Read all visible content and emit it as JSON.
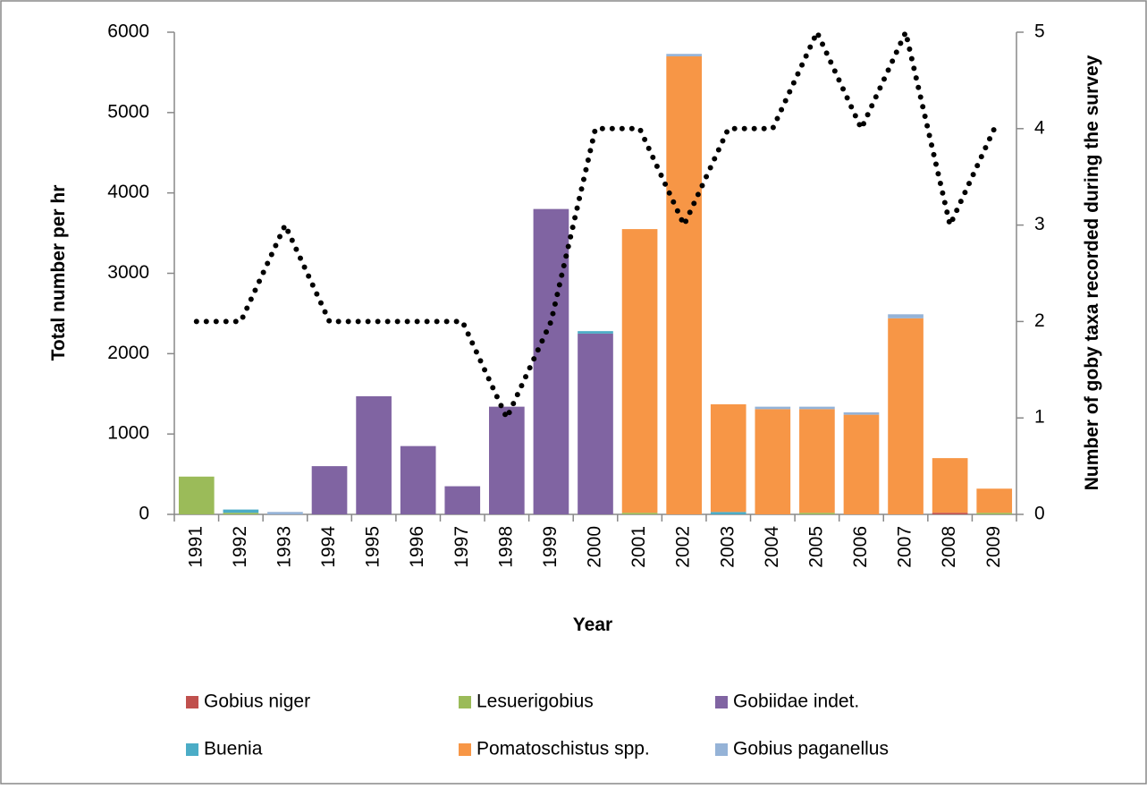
{
  "chart_data": {
    "type": "stacked-bar-line",
    "xlabel": "Year",
    "ylabel": "Total number per hr",
    "y2label": "Number of goby taxa recorded during the survey",
    "categories": [
      "1991",
      "1992",
      "1993",
      "1994",
      "1995",
      "1996",
      "1997",
      "1998",
      "1999",
      "2000",
      "2001",
      "2002",
      "2003",
      "2004",
      "2005",
      "2006",
      "2007",
      "2008",
      "2009"
    ],
    "series": [
      {
        "name": "Gobius niger",
        "color": "#c0504d",
        "values": [
          0,
          0,
          0,
          0,
          0,
          0,
          0,
          0,
          0,
          0,
          0,
          0,
          0,
          0,
          0,
          0,
          0,
          20,
          0
        ]
      },
      {
        "name": "Lesuerigobius",
        "color": "#9bbb59",
        "values": [
          470,
          20,
          0,
          0,
          0,
          0,
          0,
          0,
          0,
          0,
          20,
          0,
          0,
          0,
          20,
          0,
          0,
          0,
          20
        ]
      },
      {
        "name": "Gobiidae indet.",
        "color": "#8064a2",
        "values": [
          0,
          0,
          0,
          600,
          1470,
          850,
          350,
          1340,
          3800,
          2250,
          0,
          0,
          0,
          0,
          0,
          0,
          0,
          0,
          0
        ]
      },
      {
        "name": "Buenia",
        "color": "#4bacc6",
        "values": [
          0,
          40,
          0,
          0,
          0,
          0,
          0,
          0,
          0,
          30,
          0,
          0,
          30,
          0,
          0,
          0,
          0,
          0,
          0
        ]
      },
      {
        "name": "Pomatoschistus spp.",
        "color": "#f79646",
        "values": [
          0,
          0,
          0,
          0,
          0,
          0,
          0,
          0,
          0,
          0,
          3530,
          5700,
          1340,
          1310,
          1290,
          1240,
          2440,
          680,
          300
        ]
      },
      {
        "name": "Gobius paganellus",
        "color": "#95b3d7",
        "values": [
          0,
          0,
          30,
          0,
          0,
          0,
          0,
          0,
          0,
          0,
          0,
          30,
          0,
          30,
          30,
          30,
          50,
          0,
          0
        ]
      }
    ],
    "line": {
      "axis": "y2",
      "color": "#000000",
      "values": [
        2,
        2,
        3,
        2,
        2,
        2,
        2,
        1,
        2,
        4,
        4,
        3,
        4,
        4,
        5,
        4,
        5,
        3,
        4
      ]
    },
    "ylim": [
      0,
      6000
    ],
    "yticks": [
      0,
      1000,
      2000,
      3000,
      4000,
      5000,
      6000
    ],
    "y2lim": [
      0,
      5
    ],
    "y2ticks": [
      0,
      1,
      2,
      3,
      4,
      5
    ]
  }
}
